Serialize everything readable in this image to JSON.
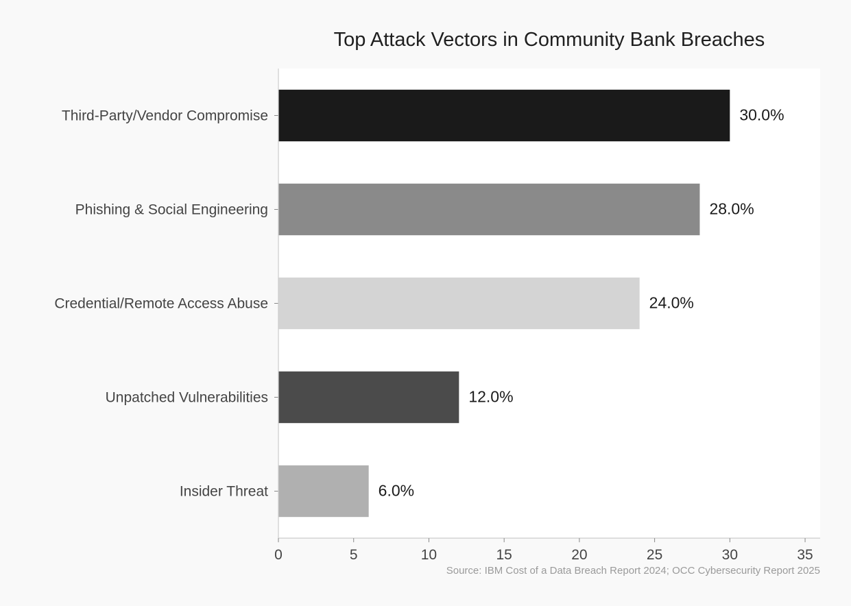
{
  "chart_data": {
    "type": "bar",
    "orientation": "horizontal",
    "title": "Top Attack Vectors in Community Bank Breaches",
    "categories": [
      "Third-Party/Vendor Compromise",
      "Phishing & Social Engineering",
      "Credential/Remote Access Abuse",
      "Unpatched Vulnerabilities",
      "Insider Threat"
    ],
    "values": [
      30.0,
      28.0,
      24.0,
      12.0,
      6.0
    ],
    "value_labels": [
      "30.0%",
      "28.0%",
      "24.0%",
      "12.0%",
      "6.0%"
    ],
    "bar_colors": [
      "#1a1a1a",
      "#8a8a8a",
      "#d4d4d4",
      "#4b4b4b",
      "#b0b0b0"
    ],
    "xlabel": "",
    "ylabel": "",
    "xlim": [
      0,
      36
    ],
    "xticks": [
      0,
      5,
      10,
      15,
      20,
      25,
      30,
      35
    ],
    "grid": false,
    "legend": "none",
    "source": "Source: IBM Cost of a Data Breach Report 2024; OCC Cybersecurity Report 2025"
  }
}
